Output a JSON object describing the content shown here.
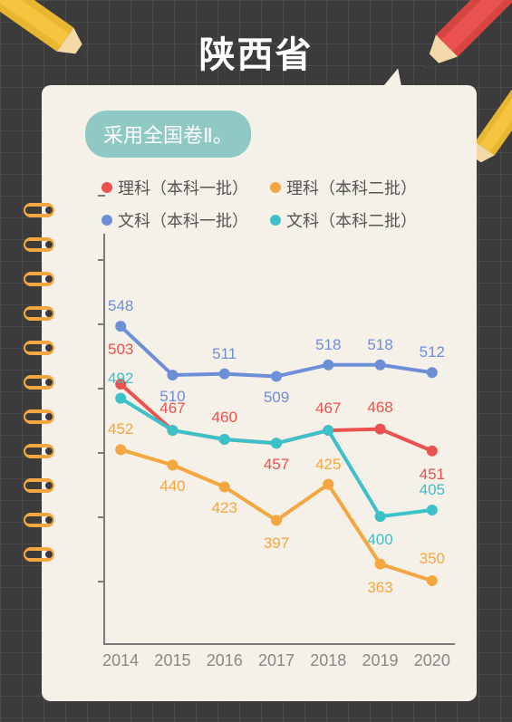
{
  "title": "陕西省",
  "badge": "采用全国卷Ⅱ。",
  "legend": [
    {
      "color": "#e9524e",
      "label": "理科（本科一批）"
    },
    {
      "color": "#f4a640",
      "label": "理科（本科二批）"
    },
    {
      "color": "#6d8fd8",
      "label": "文科（本科一批）"
    },
    {
      "color": "#3cc1c9",
      "label": "文科（本科二批）"
    }
  ],
  "chart": {
    "type": "line",
    "x_categories": [
      "2014",
      "2015",
      "2016",
      "2017",
      "2018",
      "2019",
      "2020"
    ],
    "y_min": 300,
    "y_max": 620,
    "y_tick_step": 50,
    "y_tick_count": 7,
    "line_width": 4,
    "marker_radius": 6,
    "axis_color": "#7a7a7a",
    "label_fontsize": 17,
    "xlabel_fontsize": 18,
    "xlabel_color": "#888888",
    "background_color": "#f5f1e8",
    "series": [
      {
        "name": "文科一批",
        "color": "#6d8fd8",
        "points": [
          548,
          510,
          511,
          509,
          518,
          518,
          512
        ],
        "label_dy": [
          -12,
          16,
          -12,
          16,
          -12,
          -12,
          -12
        ]
      },
      {
        "name": "理科一批",
        "color": "#e9524e",
        "points": [
          503,
          467,
          460,
          457,
          467,
          468,
          451
        ],
        "label_dy": [
          -28,
          -14,
          -14,
          16,
          -14,
          -14,
          18
        ],
        "label_text": [
          "503",
          "467",
          "460",
          "457",
          "467",
          "468",
          "451"
        ]
      },
      {
        "name": "文科二批",
        "color": "#3cc1c9",
        "points": [
          492,
          467,
          460,
          457,
          467,
          400,
          405
        ],
        "label_dy": [
          -12,
          0,
          0,
          0,
          0,
          18,
          -12
        ],
        "show_labels": [
          true,
          false,
          false,
          false,
          false,
          true,
          true
        ],
        "label_text": [
          "492",
          "",
          "",
          "",
          "",
          "400",
          "405"
        ]
      },
      {
        "name": "理科二批",
        "color": "#f4a640",
        "points": [
          452,
          440,
          423,
          397,
          425,
          363,
          350
        ],
        "label_dy": [
          -12,
          16,
          16,
          18,
          -12,
          18,
          -14
        ]
      }
    ]
  },
  "pencils": {
    "top_left_color": "#f5c542",
    "top_right_color": "#e9524e",
    "right_color": "#f5c542"
  }
}
